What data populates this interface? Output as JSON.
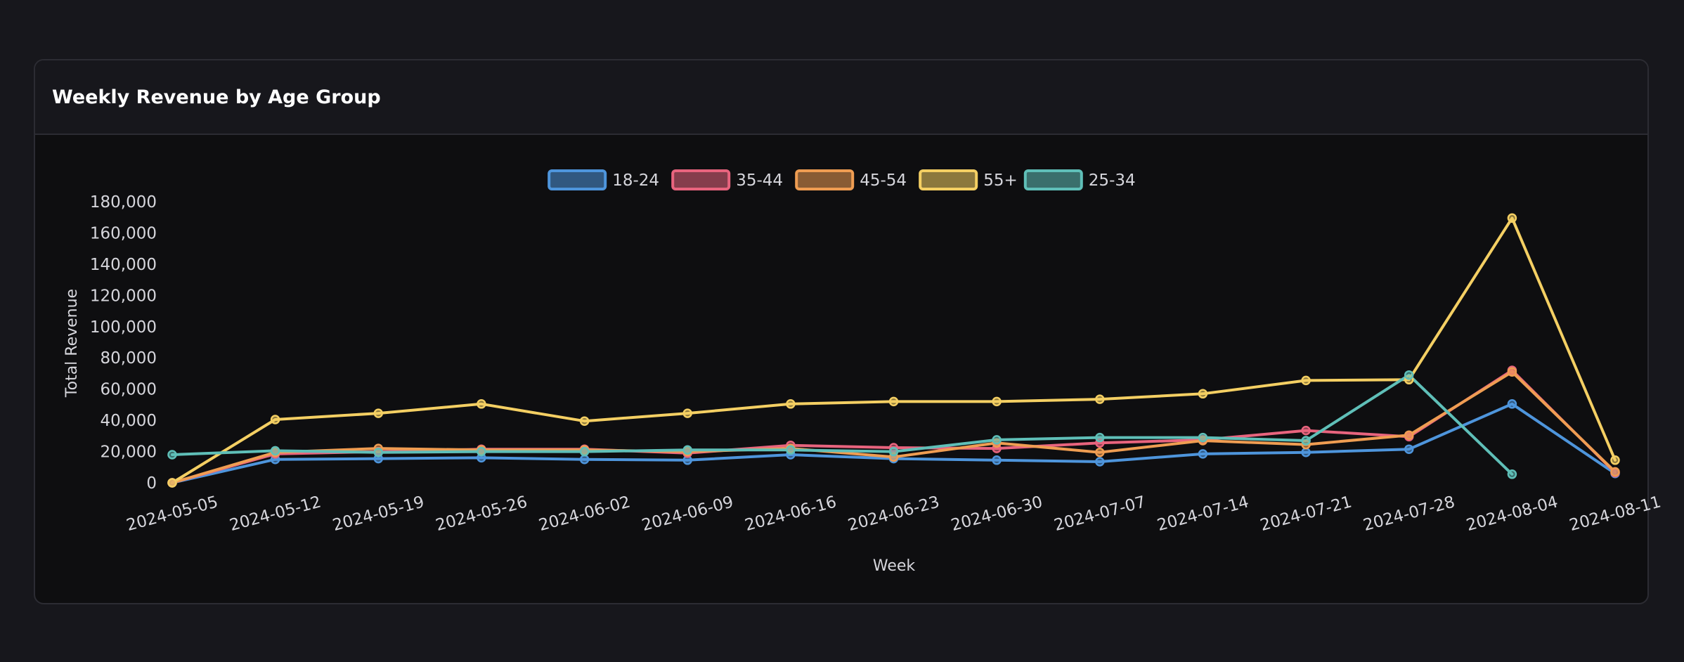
{
  "card": {
    "title": "Weekly Revenue by Age Group"
  },
  "chart_data": {
    "type": "line",
    "title": "",
    "xlabel": "Week",
    "ylabel": "Total Revenue",
    "ylim": [
      0,
      180000
    ],
    "yticks": [
      0,
      20000,
      40000,
      60000,
      80000,
      100000,
      120000,
      140000,
      160000,
      180000
    ],
    "ytick_labels": [
      "0",
      "20,000",
      "40,000",
      "60,000",
      "80,000",
      "100,000",
      "120,000",
      "140,000",
      "160,000",
      "180,000"
    ],
    "categories": [
      "2024-05-05",
      "2024-05-12",
      "2024-05-19",
      "2024-05-26",
      "2024-06-02",
      "2024-06-09",
      "2024-06-16",
      "2024-06-23",
      "2024-06-30",
      "2024-07-07",
      "2024-07-14",
      "2024-07-21",
      "2024-07-28",
      "2024-08-04",
      "2024-08-11"
    ],
    "grid": false,
    "legend_position": "top-center",
    "series": [
      {
        "name": "18-24",
        "color": "#4e95dc",
        "values": [
          0,
          15000,
          15500,
          16000,
          15000,
          14500,
          18000,
          15500,
          14500,
          13500,
          18500,
          19500,
          21500,
          50500,
          6000
        ]
      },
      {
        "name": "35-44",
        "color": "#e8647e",
        "values": [
          0,
          18500,
          20000,
          21500,
          21500,
          19000,
          24000,
          22500,
          22000,
          25500,
          27500,
          33500,
          29500,
          72000,
          6500
        ]
      },
      {
        "name": "45-54",
        "color": "#ef9d52",
        "values": [
          0,
          19500,
          22000,
          21000,
          21000,
          20000,
          22000,
          16500,
          25500,
          19500,
          27000,
          24500,
          30500,
          71000,
          7000
        ]
      },
      {
        "name": "55+",
        "color": "#f4cf63",
        "values": [
          0,
          40500,
          44500,
          50500,
          39500,
          44500,
          50500,
          52000,
          52000,
          53500,
          57000,
          65500,
          66000,
          169500,
          14500
        ]
      },
      {
        "name": "25-34",
        "color": "#5fbfb8",
        "values": [
          18000,
          20500,
          19500,
          20000,
          20000,
          21000,
          21000,
          20000,
          27500,
          29000,
          29000,
          27000,
          69000,
          5500,
          null
        ]
      }
    ]
  }
}
